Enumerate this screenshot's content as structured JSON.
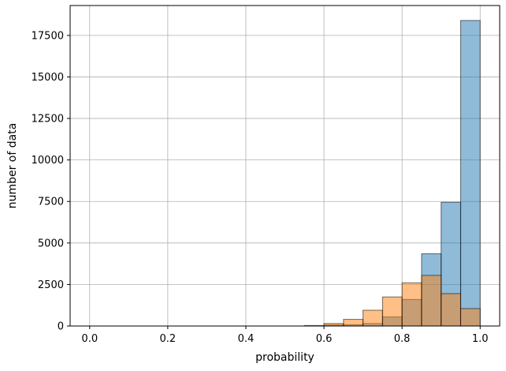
{
  "chart_data": {
    "type": "bar",
    "bar_style": "histogram-overlay",
    "xlabel": "probability",
    "ylabel": "number of data",
    "xlim": [
      -0.05,
      1.05
    ],
    "ylim": [
      0,
      19300
    ],
    "grid": true,
    "xticks": [
      0.0,
      0.2,
      0.4,
      0.6,
      0.8,
      1.0
    ],
    "xtick_labels": [
      "0.0",
      "0.2",
      "0.4",
      "0.6",
      "0.8",
      "1.0"
    ],
    "yticks": [
      0,
      2500,
      5000,
      7500,
      10000,
      12500,
      15000,
      17500
    ],
    "ytick_labels": [
      "0",
      "2500",
      "5000",
      "7500",
      "10000",
      "12500",
      "15000",
      "17500"
    ],
    "bin_edges": [
      0.0,
      0.05,
      0.1,
      0.15,
      0.2,
      0.25,
      0.3,
      0.35,
      0.4,
      0.45,
      0.5,
      0.55,
      0.6,
      0.65,
      0.7,
      0.75,
      0.8,
      0.85,
      0.9,
      0.95,
      1.0
    ],
    "series": [
      {
        "color": "#1f77b4",
        "values": [
          0,
          0,
          0,
          0,
          0,
          0,
          0,
          0,
          0,
          0,
          0,
          30,
          60,
          80,
          150,
          550,
          1600,
          4350,
          7450,
          18400
        ]
      },
      {
        "color": "#ff7f0e",
        "values": [
          0,
          0,
          0,
          0,
          0,
          0,
          0,
          0,
          0,
          0,
          0,
          0,
          150,
          400,
          950,
          1750,
          2600,
          3050,
          1950,
          1050
        ]
      }
    ]
  }
}
